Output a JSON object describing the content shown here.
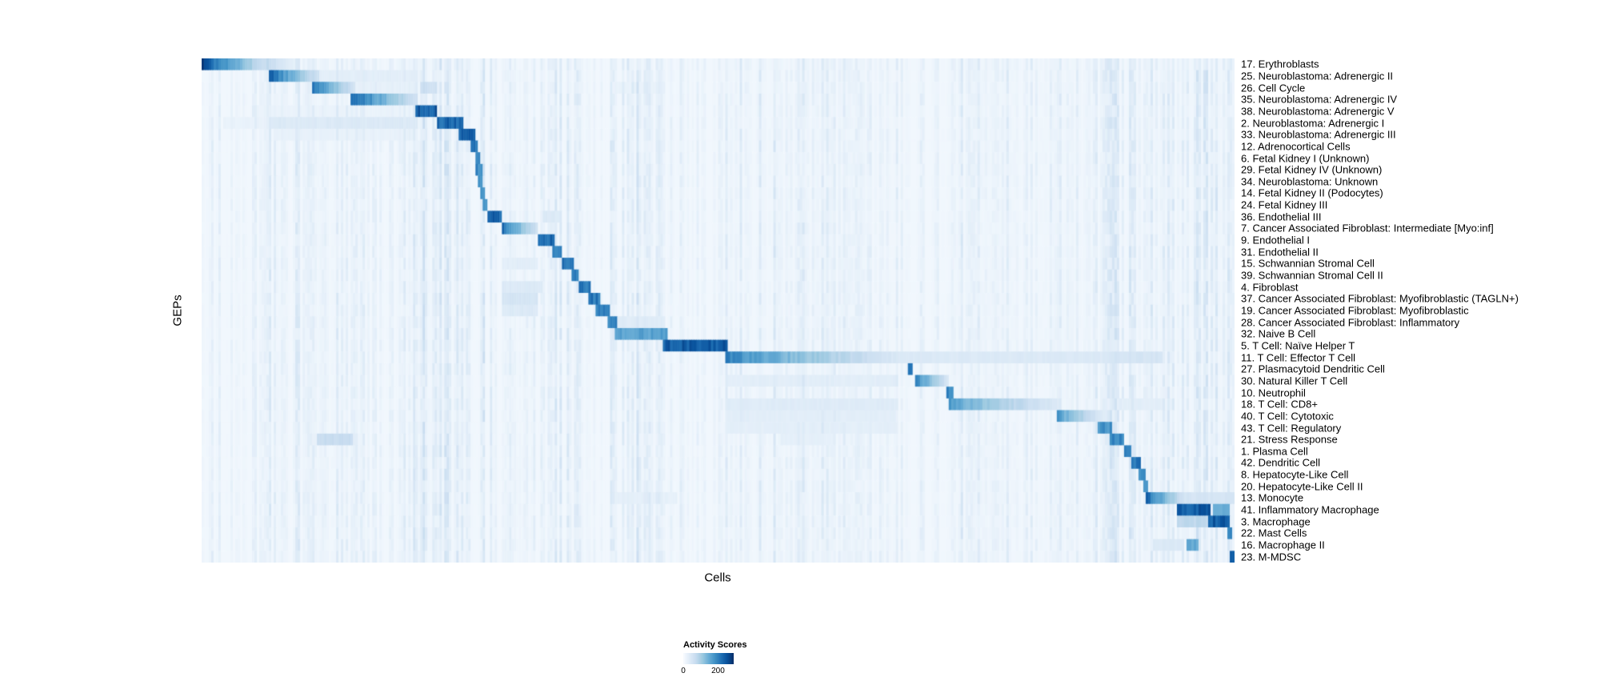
{
  "chart_data": {
    "type": "heatmap",
    "title": "",
    "xlabel": "Cells",
    "ylabel": "GEPs",
    "colormap": "Blues",
    "colors": {
      "low": "#f7fbff",
      "mid": "#6baed6",
      "high": "#08306b"
    },
    "color_scale": {
      "min": 0,
      "max": 290,
      "legend_title": "Activity Scores",
      "legend_ticks": [
        0,
        200
      ]
    },
    "background_level": 8,
    "noise_bands": [
      [
        0.06,
        0.21,
        15
      ],
      [
        0.205,
        0.275,
        35
      ],
      [
        0.28,
        0.37,
        22
      ],
      [
        0.395,
        0.46,
        25
      ],
      [
        0.5,
        0.68,
        15
      ],
      [
        0.72,
        0.86,
        12
      ],
      [
        0.86,
        1.0,
        28
      ]
    ],
    "rows": [
      {
        "label": "17. Erythroblasts",
        "blocks": [
          [
            0.0,
            0.062,
            270,
            1
          ],
          [
            0.062,
            0.095,
            80,
            1
          ]
        ]
      },
      {
        "label": "25. Neuroblastoma: Adrenergic II",
        "blocks": [
          [
            0.064,
            0.114,
            250,
            1
          ],
          [
            0.114,
            0.21,
            30,
            0
          ]
        ]
      },
      {
        "label": "26. Cell Cycle",
        "blocks": [
          [
            0.107,
            0.148,
            240,
            1
          ],
          [
            0.148,
            0.21,
            25,
            0
          ],
          [
            0.212,
            0.228,
            60,
            0
          ],
          [
            0.396,
            0.45,
            20,
            0
          ]
        ]
      },
      {
        "label": "35. Neuroblastoma: Adrenergic IV",
        "blocks": [
          [
            0.144,
            0.21,
            250,
            1
          ]
        ]
      },
      {
        "label": "38. Neuroblastoma: Adrenergic V",
        "blocks": [
          [
            0.207,
            0.228,
            240,
            0
          ],
          [
            0.05,
            0.207,
            18,
            0
          ]
        ]
      },
      {
        "label": "2. Neuroblastoma: Adrenergic I",
        "blocks": [
          [
            0.228,
            0.253,
            230,
            0
          ],
          [
            0.064,
            0.21,
            40,
            0
          ],
          [
            0.021,
            0.064,
            20,
            0
          ]
        ]
      },
      {
        "label": "33. Neuroblastoma: Adrenergic III",
        "blocks": [
          [
            0.25,
            0.265,
            230,
            0
          ],
          [
            0.07,
            0.21,
            22,
            0
          ]
        ]
      },
      {
        "label": "12. Adrenocortical Cells",
        "blocks": [
          [
            0.261,
            0.267,
            210,
            0
          ]
        ]
      },
      {
        "label": "6. Fetal Kidney I (Unknown)",
        "blocks": [
          [
            0.264,
            0.269,
            200,
            0
          ]
        ]
      },
      {
        "label": "29. Fetal Kidney IV (Unknown)",
        "blocks": [
          [
            0.266,
            0.271,
            190,
            0
          ]
        ]
      },
      {
        "label": "34. Neuroblastoma: Unknown",
        "blocks": [
          [
            0.268,
            0.272,
            190,
            0
          ]
        ]
      },
      {
        "label": "14. Fetal Kidney II (Podocytes)",
        "blocks": [
          [
            0.27,
            0.274,
            190,
            0
          ]
        ]
      },
      {
        "label": "24. Fetal Kidney III",
        "blocks": [
          [
            0.271,
            0.276,
            190,
            0
          ]
        ]
      },
      {
        "label": "36. Endothelial III",
        "blocks": [
          [
            0.276,
            0.291,
            230,
            0
          ],
          [
            0.33,
            0.35,
            40,
            0
          ]
        ]
      },
      {
        "label": "7. Cancer Associated Fibroblast: Intermediate [Myo:inf]",
        "blocks": [
          [
            0.29,
            0.326,
            240,
            1
          ]
        ]
      },
      {
        "label": "9. Endothelial I",
        "blocks": [
          [
            0.326,
            0.341,
            230,
            0
          ]
        ]
      },
      {
        "label": "31. Endothelial II",
        "blocks": [
          [
            0.34,
            0.35,
            210,
            0
          ]
        ]
      },
      {
        "label": "15. Schwannian Stromal Cell",
        "blocks": [
          [
            0.349,
            0.36,
            210,
            0
          ],
          [
            0.29,
            0.326,
            30,
            0
          ]
        ]
      },
      {
        "label": "39. Schwannian Stromal Cell II",
        "blocks": [
          [
            0.357,
            0.366,
            200,
            0
          ]
        ]
      },
      {
        "label": "4. Fibroblast",
        "blocks": [
          [
            0.364,
            0.376,
            210,
            0
          ],
          [
            0.29,
            0.33,
            40,
            0
          ]
        ]
      },
      {
        "label": "37. Cancer Associated Fibroblast: Myofibroblastic (TAGLN+)",
        "blocks": [
          [
            0.374,
            0.385,
            210,
            0
          ],
          [
            0.29,
            0.326,
            50,
            0
          ]
        ]
      },
      {
        "label": "19. Cancer Associated Fibroblast: Myofibroblastic",
        "blocks": [
          [
            0.382,
            0.395,
            210,
            0
          ],
          [
            0.29,
            0.326,
            40,
            0
          ]
        ]
      },
      {
        "label": "28. Cancer Associated Fibroblast: Inflammatory",
        "blocks": [
          [
            0.392,
            0.403,
            200,
            0
          ],
          [
            0.403,
            0.45,
            35,
            0
          ]
        ]
      },
      {
        "label": "32. Naive B Cell",
        "blocks": [
          [
            0.399,
            0.452,
            160,
            0
          ]
        ]
      },
      {
        "label": "5. T Cell: Naïve Helper T",
        "blocks": [
          [
            0.446,
            0.509,
            240,
            0
          ]
        ]
      },
      {
        "label": "11. T Cell: Effector T Cell",
        "blocks": [
          [
            0.508,
            0.672,
            200,
            1
          ],
          [
            0.672,
            0.88,
            40,
            0
          ],
          [
            0.88,
            0.93,
            50,
            0
          ]
        ]
      },
      {
        "label": "27. Plasmacytoid Dendritic Cell",
        "blocks": [
          [
            0.683,
            0.689,
            220,
            0
          ]
        ]
      },
      {
        "label": "30. Natural Killer T Cell",
        "blocks": [
          [
            0.69,
            0.723,
            210,
            1
          ],
          [
            0.508,
            0.672,
            30,
            0
          ]
        ]
      },
      {
        "label": "10. Neutrophil",
        "blocks": [
          [
            0.722,
            0.728,
            190,
            0
          ]
        ]
      },
      {
        "label": "18. T Cell: CD8+",
        "blocks": [
          [
            0.723,
            0.831,
            170,
            1
          ],
          [
            0.508,
            0.672,
            35,
            0
          ],
          [
            0.88,
            0.93,
            30,
            0
          ]
        ]
      },
      {
        "label": "40. T Cell: Cytotoxic",
        "blocks": [
          [
            0.828,
            0.871,
            180,
            1
          ],
          [
            0.508,
            0.672,
            30,
            0
          ]
        ]
      },
      {
        "label": "43. T Cell: Regulatory",
        "blocks": [
          [
            0.868,
            0.882,
            180,
            0
          ],
          [
            0.508,
            0.672,
            28,
            0
          ]
        ]
      },
      {
        "label": "21. Stress Response",
        "blocks": [
          [
            0.879,
            0.893,
            190,
            0
          ],
          [
            0.112,
            0.147,
            70,
            0
          ],
          [
            0.56,
            0.61,
            25,
            0
          ]
        ]
      },
      {
        "label": "1. Plasma Cell",
        "blocks": [
          [
            0.892,
            0.9,
            190,
            0
          ]
        ]
      },
      {
        "label": "42. Dendritic Cell",
        "blocks": [
          [
            0.899,
            0.91,
            220,
            0
          ]
        ]
      },
      {
        "label": "8. Hepatocyte-Like Cell",
        "blocks": [
          [
            0.908,
            0.913,
            180,
            0
          ]
        ]
      },
      {
        "label": "20. Hepatocyte-Like Cell II",
        "blocks": [
          [
            0.911,
            0.917,
            180,
            0
          ]
        ]
      },
      {
        "label": "13. Monocyte",
        "blocks": [
          [
            0.915,
            0.951,
            240,
            1
          ],
          [
            0.951,
            1.0,
            50,
            0
          ],
          [
            0.4,
            0.46,
            25,
            0
          ]
        ]
      },
      {
        "label": "41. Inflammatory Macrophage",
        "blocks": [
          [
            0.944,
            0.976,
            240,
            0
          ],
          [
            0.98,
            0.996,
            150,
            0
          ]
        ]
      },
      {
        "label": "3. Macrophage",
        "blocks": [
          [
            0.974,
            0.996,
            240,
            0
          ],
          [
            0.944,
            0.974,
            80,
            0
          ]
        ]
      },
      {
        "label": "22. Mast Cells",
        "blocks": [
          [
            0.992,
            0.997,
            200,
            0
          ]
        ]
      },
      {
        "label": "16. Macrophage II",
        "blocks": [
          [
            0.953,
            0.964,
            150,
            0
          ],
          [
            0.92,
            0.95,
            40,
            0
          ]
        ]
      },
      {
        "label": "23. M-MDSC",
        "blocks": [
          [
            0.996,
            1.0,
            240,
            0
          ]
        ]
      }
    ]
  }
}
